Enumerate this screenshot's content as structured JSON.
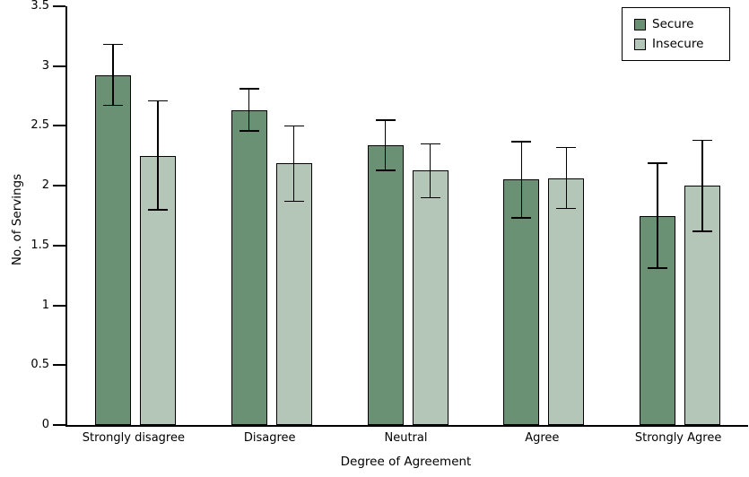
{
  "chart_data": {
    "type": "bar",
    "title": "",
    "xlabel": "Degree of Agreement",
    "ylabel": "No. of Servings",
    "categories": [
      "Strongly disagree",
      "Disagree",
      "Neutral",
      "Agree",
      "Strongly Agree"
    ],
    "series": [
      {
        "name": "Secure",
        "color": "#6B9174",
        "values": [
          2.92,
          2.63,
          2.34,
          2.05,
          1.75
        ],
        "error_low": [
          2.67,
          2.46,
          2.13,
          1.73,
          1.31
        ],
        "error_high": [
          3.18,
          2.81,
          2.55,
          2.37,
          2.19
        ]
      },
      {
        "name": "Insecure",
        "color": "#B4C6B7",
        "values": [
          2.25,
          2.19,
          2.13,
          2.06,
          2.0
        ],
        "error_low": [
          1.8,
          1.87,
          1.9,
          1.81,
          1.62
        ],
        "error_high": [
          2.71,
          2.5,
          2.35,
          2.32,
          2.38
        ]
      }
    ],
    "ylim": [
      0,
      3.5
    ],
    "yticks": [
      0,
      0.5,
      1,
      1.5,
      2,
      2.5,
      3,
      3.5
    ],
    "ytick_labels": [
      "0",
      "0.5",
      "1",
      "1.5",
      "2",
      "2.5",
      "3",
      "3.5"
    ],
    "grid": false,
    "legend_position": "top-right",
    "bar_border_color": "#000000",
    "axis_color": "#000000",
    "background_color": "#ffffff"
  }
}
